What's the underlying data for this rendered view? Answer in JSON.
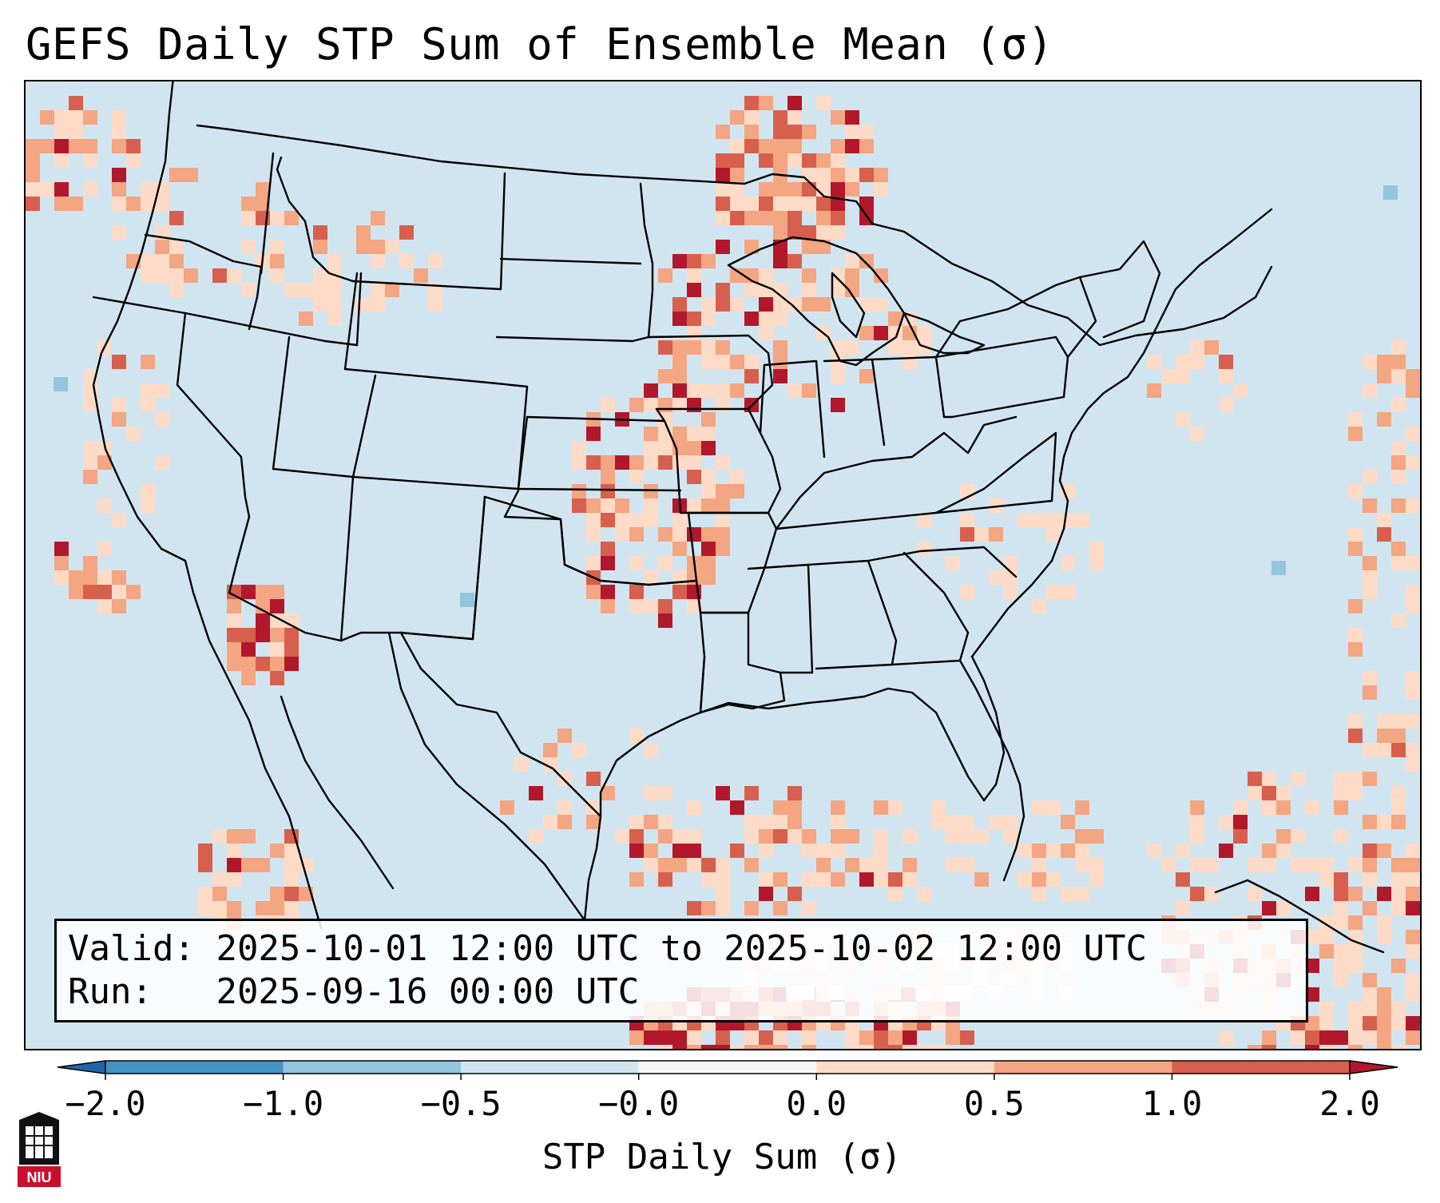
{
  "title": "GEFS Daily STP Sum of Ensemble Mean (σ)",
  "info_box": {
    "valid_label": "Valid:",
    "valid_value": "2025-10-01 12:00 UTC to 2025-10-02 12:00 UTC",
    "run_label": "Run:",
    "run_value": "2025-09-16 00:00 UTC"
  },
  "colorbar": {
    "label": "STP Daily Sum (σ)",
    "ticks": [
      "−2.0",
      "−1.0",
      "−0.5",
      "−0.0",
      "0.0",
      "0.5",
      "1.0",
      "2.0"
    ],
    "colors": [
      "#2166ac",
      "#4393c3",
      "#92c5de",
      "#d1e5f0",
      "#f7f7f7",
      "#fddbc7",
      "#f4a582",
      "#d6604d",
      "#b2182b"
    ]
  },
  "logo": {
    "text": "NIU"
  },
  "map": {
    "background_color": "#d1e5f0",
    "features": [
      "us-state-boundaries",
      "coastlines",
      "canada-mexico-borders",
      "great-lakes"
    ]
  }
}
